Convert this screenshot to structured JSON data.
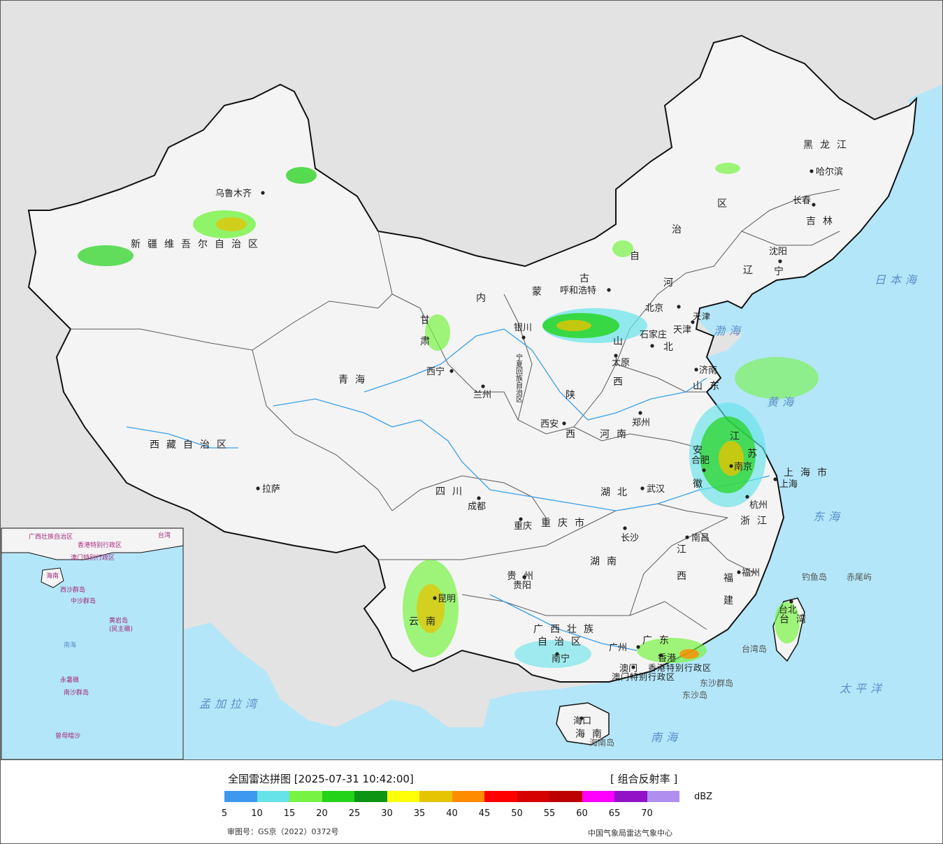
{
  "map": {
    "provinces": [
      {
        "key": "xinjiang",
        "label": "新疆维吾尔自治区"
      },
      {
        "key": "xizang",
        "label": "西藏自治区"
      },
      {
        "key": "qinghai",
        "label": "青海"
      },
      {
        "key": "gansu_1",
        "label": "甘"
      },
      {
        "key": "gansu_2",
        "label": "肃"
      },
      {
        "key": "neimenggu_1",
        "label": "内"
      },
      {
        "key": "neimenggu_2",
        "label": "蒙"
      },
      {
        "key": "neimenggu_3",
        "label": "古"
      },
      {
        "key": "neimenggu_4",
        "label": "自"
      },
      {
        "key": "neimenggu_5",
        "label": "治"
      },
      {
        "key": "neimenggu_6",
        "label": "区"
      },
      {
        "key": "heilongjiang",
        "label": "黑龙江"
      },
      {
        "key": "jilin",
        "label": "吉林"
      },
      {
        "key": "liaoning_1",
        "label": "辽"
      },
      {
        "key": "liaoning_2",
        "label": "宁"
      },
      {
        "key": "hebei_1",
        "label": "河"
      },
      {
        "key": "hebei_2",
        "label": "北"
      },
      {
        "key": "shanxi_1",
        "label": "山"
      },
      {
        "key": "shanxi_2",
        "label": "西"
      },
      {
        "key": "shaanxi_1",
        "label": "陕"
      },
      {
        "key": "shaanxi_2",
        "label": "西"
      },
      {
        "key": "shandong",
        "label": "山东"
      },
      {
        "key": "henan",
        "label": "河南"
      },
      {
        "key": "jiangsu_1",
        "label": "江"
      },
      {
        "key": "jiangsu_2",
        "label": "苏"
      },
      {
        "key": "anhui_1",
        "label": "安"
      },
      {
        "key": "anhui_2",
        "label": "徽"
      },
      {
        "key": "shanghai",
        "label": "上海市"
      },
      {
        "key": "zhejiang",
        "label": "浙江"
      },
      {
        "key": "hubei",
        "label": "湖北"
      },
      {
        "key": "hunan",
        "label": "湖南"
      },
      {
        "key": "jiangxi_1",
        "label": "江"
      },
      {
        "key": "jiangxi_2",
        "label": "西"
      },
      {
        "key": "fujian_1",
        "label": "福"
      },
      {
        "key": "fujian_2",
        "label": "建"
      },
      {
        "key": "sichuan",
        "label": "四川"
      },
      {
        "key": "chongqing",
        "label": "重庆市"
      },
      {
        "key": "guizhou",
        "label": "贵州"
      },
      {
        "key": "yunnan",
        "label": "云南"
      },
      {
        "key": "guangxi_1",
        "label": "广西壮族"
      },
      {
        "key": "guangxi_2",
        "label": "自治区"
      },
      {
        "key": "guangdong",
        "label": "广东"
      },
      {
        "key": "hainan",
        "label": "海南"
      },
      {
        "key": "taiwan",
        "label": "台湾"
      },
      {
        "key": "ningxia",
        "label": "宁夏回族自治区"
      },
      {
        "key": "tianjin",
        "label": "天津"
      },
      {
        "key": "hongkong",
        "label": "香港特别行政区"
      },
      {
        "key": "macau",
        "label": "澳门特别行政区"
      }
    ],
    "cities": [
      {
        "key": "urumqi",
        "label": "乌鲁木齐"
      },
      {
        "key": "lhasa",
        "label": "拉萨"
      },
      {
        "key": "xining",
        "label": "西宁"
      },
      {
        "key": "lanzhou",
        "label": "兰州"
      },
      {
        "key": "yinchuan",
        "label": "银川"
      },
      {
        "key": "hohhot",
        "label": "呼和浩特"
      },
      {
        "key": "beijing",
        "label": "北京"
      },
      {
        "key": "tianjin_city",
        "label": "天津"
      },
      {
        "key": "shijiazhuang",
        "label": "石家庄"
      },
      {
        "key": "taiyuan",
        "label": "太原"
      },
      {
        "key": "jinan",
        "label": "济南"
      },
      {
        "key": "zhengzhou",
        "label": "郑州"
      },
      {
        "key": "xian",
        "label": "西安"
      },
      {
        "key": "hefei",
        "label": "合肥"
      },
      {
        "key": "nanjing",
        "label": "南京"
      },
      {
        "key": "shanghai_city",
        "label": "上海"
      },
      {
        "key": "hangzhou",
        "label": "杭州"
      },
      {
        "key": "wuhan",
        "label": "武汉"
      },
      {
        "key": "changsha",
        "label": "长沙"
      },
      {
        "key": "nanchang",
        "label": "南昌"
      },
      {
        "key": "fuzhou",
        "label": "福州"
      },
      {
        "key": "chengdu",
        "label": "成都"
      },
      {
        "key": "chongqing_city",
        "label": "重庆"
      },
      {
        "key": "guiyang",
        "label": "贵阳"
      },
      {
        "key": "kunming",
        "label": "昆明"
      },
      {
        "key": "nanning",
        "label": "南宁"
      },
      {
        "key": "guangzhou",
        "label": "广州"
      },
      {
        "key": "hongkong_city",
        "label": "香港"
      },
      {
        "key": "macau_city",
        "label": "澳门"
      },
      {
        "key": "haikou",
        "label": "海口"
      },
      {
        "key": "taibei",
        "label": "台北"
      },
      {
        "key": "shenyang",
        "label": "沈阳"
      },
      {
        "key": "changchun",
        "label": "长春"
      },
      {
        "key": "harbin",
        "label": "哈尔滨"
      }
    ],
    "seas": [
      {
        "key": "bohai",
        "label": "渤海"
      },
      {
        "key": "huanghai",
        "label": "黄海"
      },
      {
        "key": "donghai",
        "label": "东海"
      },
      {
        "key": "nanhai",
        "label": "南海"
      },
      {
        "key": "ribenhai",
        "label": "日本海"
      },
      {
        "key": "taipingyang",
        "label": "太平洋"
      },
      {
        "key": "mengjialawan",
        "label": "孟加拉湾"
      }
    ],
    "islands": [
      {
        "key": "diaoyudao",
        "label": "钓鱼岛"
      },
      {
        "key": "chiweiyu",
        "label": "赤尾屿"
      },
      {
        "key": "taiwandao",
        "label": "台湾岛"
      },
      {
        "key": "dongshaqundao",
        "label": "东沙群岛"
      },
      {
        "key": "dongshadao",
        "label": "东沙岛"
      },
      {
        "key": "hainandao",
        "label": "海南岛"
      }
    ],
    "inset": {
      "labels": [
        {
          "key": "guangxi",
          "label": "广西壮族自治区"
        },
        {
          "key": "gangao",
          "label": "香港特别行政区"
        },
        {
          "key": "aomen",
          "label": "澳门特别行政区"
        },
        {
          "key": "taiwan",
          "label": "台湾"
        },
        {
          "key": "hainan",
          "label": "海南"
        },
        {
          "key": "xisha",
          "label": "西沙群岛"
        },
        {
          "key": "zhongsha",
          "label": "中沙群岛"
        },
        {
          "key": "huangyandao",
          "label": "黄岩岛"
        },
        {
          "key": "minzhujiao",
          "label": "(民主礁)"
        },
        {
          "key": "nanhai",
          "label": "南海"
        },
        {
          "key": "yongshujiao",
          "label": "永暑礁"
        },
        {
          "key": "nansha",
          "label": "南沙群岛"
        },
        {
          "key": "zengmuansha",
          "label": "曾母暗沙"
        }
      ]
    },
    "colors": {
      "sea": "#b3e6f9",
      "foreign_land": "#e3e3e3",
      "china_land": "#f3f3f3",
      "border": "#111111",
      "province_border": "#555555",
      "river": "#3aa0e8",
      "island_magenta": "#d6198b"
    }
  },
  "legend": {
    "title": "全国雷达拼图 [2025-07-31 10:42:00]",
    "product": "[ 组合反射率 ]",
    "unit": "dBZ",
    "colors": [
      "#3d99ee",
      "#66e3e9",
      "#77f443",
      "#22d31a",
      "#0c9412",
      "#ffff08",
      "#e5c403",
      "#ff8b00",
      "#ff0000",
      "#d50000",
      "#bc0000",
      "#ff00ff",
      "#9212c6",
      "#b08ef0"
    ],
    "ticks": [
      "5",
      "10",
      "15",
      "20",
      "25",
      "30",
      "35",
      "40",
      "45",
      "50",
      "55",
      "60",
      "65",
      "70"
    ],
    "approval": "审图号：GS京（2022）0372号",
    "source": "中国气象局雷达气象中心"
  }
}
